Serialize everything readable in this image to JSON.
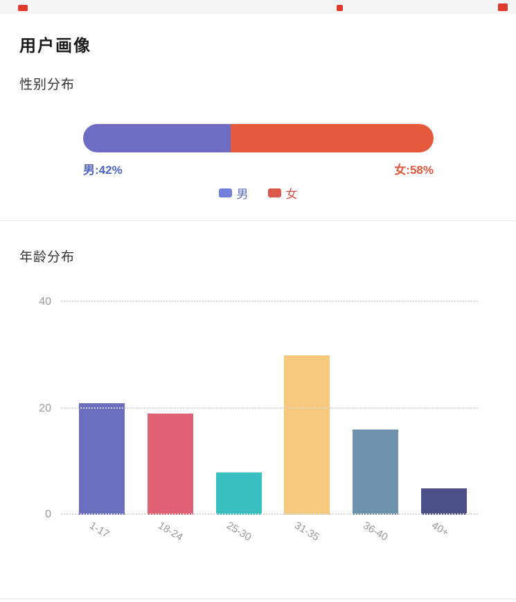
{
  "header": {
    "title": "用户画像"
  },
  "top_bar": {
    "fragment_color": "#df3b2c"
  },
  "gender": {
    "title": "性别分布",
    "male_label": "男:42%",
    "female_label": "女:58%",
    "male_label_color": "#5064c4",
    "female_label_color": "#e2563c",
    "legend": [
      {
        "label": "男",
        "swatch_color": "#7280dc",
        "text_color": "#5a6bc8"
      },
      {
        "label": "女",
        "swatch_color": "#db584c",
        "text_color": "#d9544a"
      }
    ]
  },
  "age": {
    "title": "年龄分布"
  },
  "chart_data": [
    {
      "type": "bar",
      "subtype": "horizontal-stacked-percent",
      "title": "性别分布",
      "categories": [
        "性别"
      ],
      "series": [
        {
          "name": "男",
          "values": [
            42
          ],
          "color": "#6e6dc3"
        },
        {
          "name": "女",
          "values": [
            58
          ],
          "color": "#e55a3c"
        }
      ],
      "unit": "%",
      "legend_position": "bottom"
    },
    {
      "type": "bar",
      "title": "年龄分布",
      "categories": [
        "1-17",
        "18-24",
        "25-30",
        "31-35",
        "36-40",
        "40+"
      ],
      "values": [
        21,
        19,
        8,
        30,
        16,
        5
      ],
      "bar_colors": [
        "#6b6fbd",
        "#e06173",
        "#3abfc0",
        "#f7c97d",
        "#6e93ad",
        "#4c4e87"
      ],
      "xlabel": "",
      "ylabel": "",
      "ylim": [
        0,
        40
      ],
      "yticks": [
        0,
        20,
        40
      ],
      "grid": "dotted-horizontal",
      "x_label_rotation": 31
    }
  ]
}
